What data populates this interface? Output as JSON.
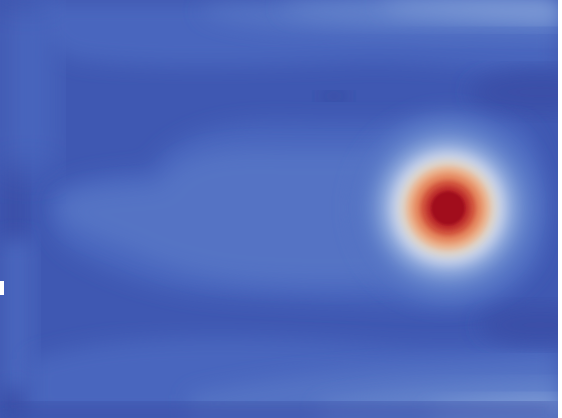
{
  "field_plot": {
    "colormap": {
      "low": "#3a4fa8",
      "band_1": "#3f58b2",
      "band_2": "#4a66be",
      "band_3": "#5573c4",
      "band_4": "#6584cc",
      "band_5": "#7f9bd6",
      "band_6": "#a2b7e2",
      "band_7": "#c6d0e6",
      "band_8": "#dcd4cc",
      "band_9": "#ebb48f",
      "band_10": "#e5875e",
      "band_11": "#d2543c",
      "band_12": "#bb2a2b",
      "high": "#a10b1d"
    },
    "hotspot": {
      "relative_center_x": 0.803,
      "relative_center_y": 0.498
    },
    "secondary_features": [
      "top-right-light-band",
      "bottom-right-light-band",
      "central-horizontal-band",
      "left-edge-dark-columns"
    ]
  }
}
